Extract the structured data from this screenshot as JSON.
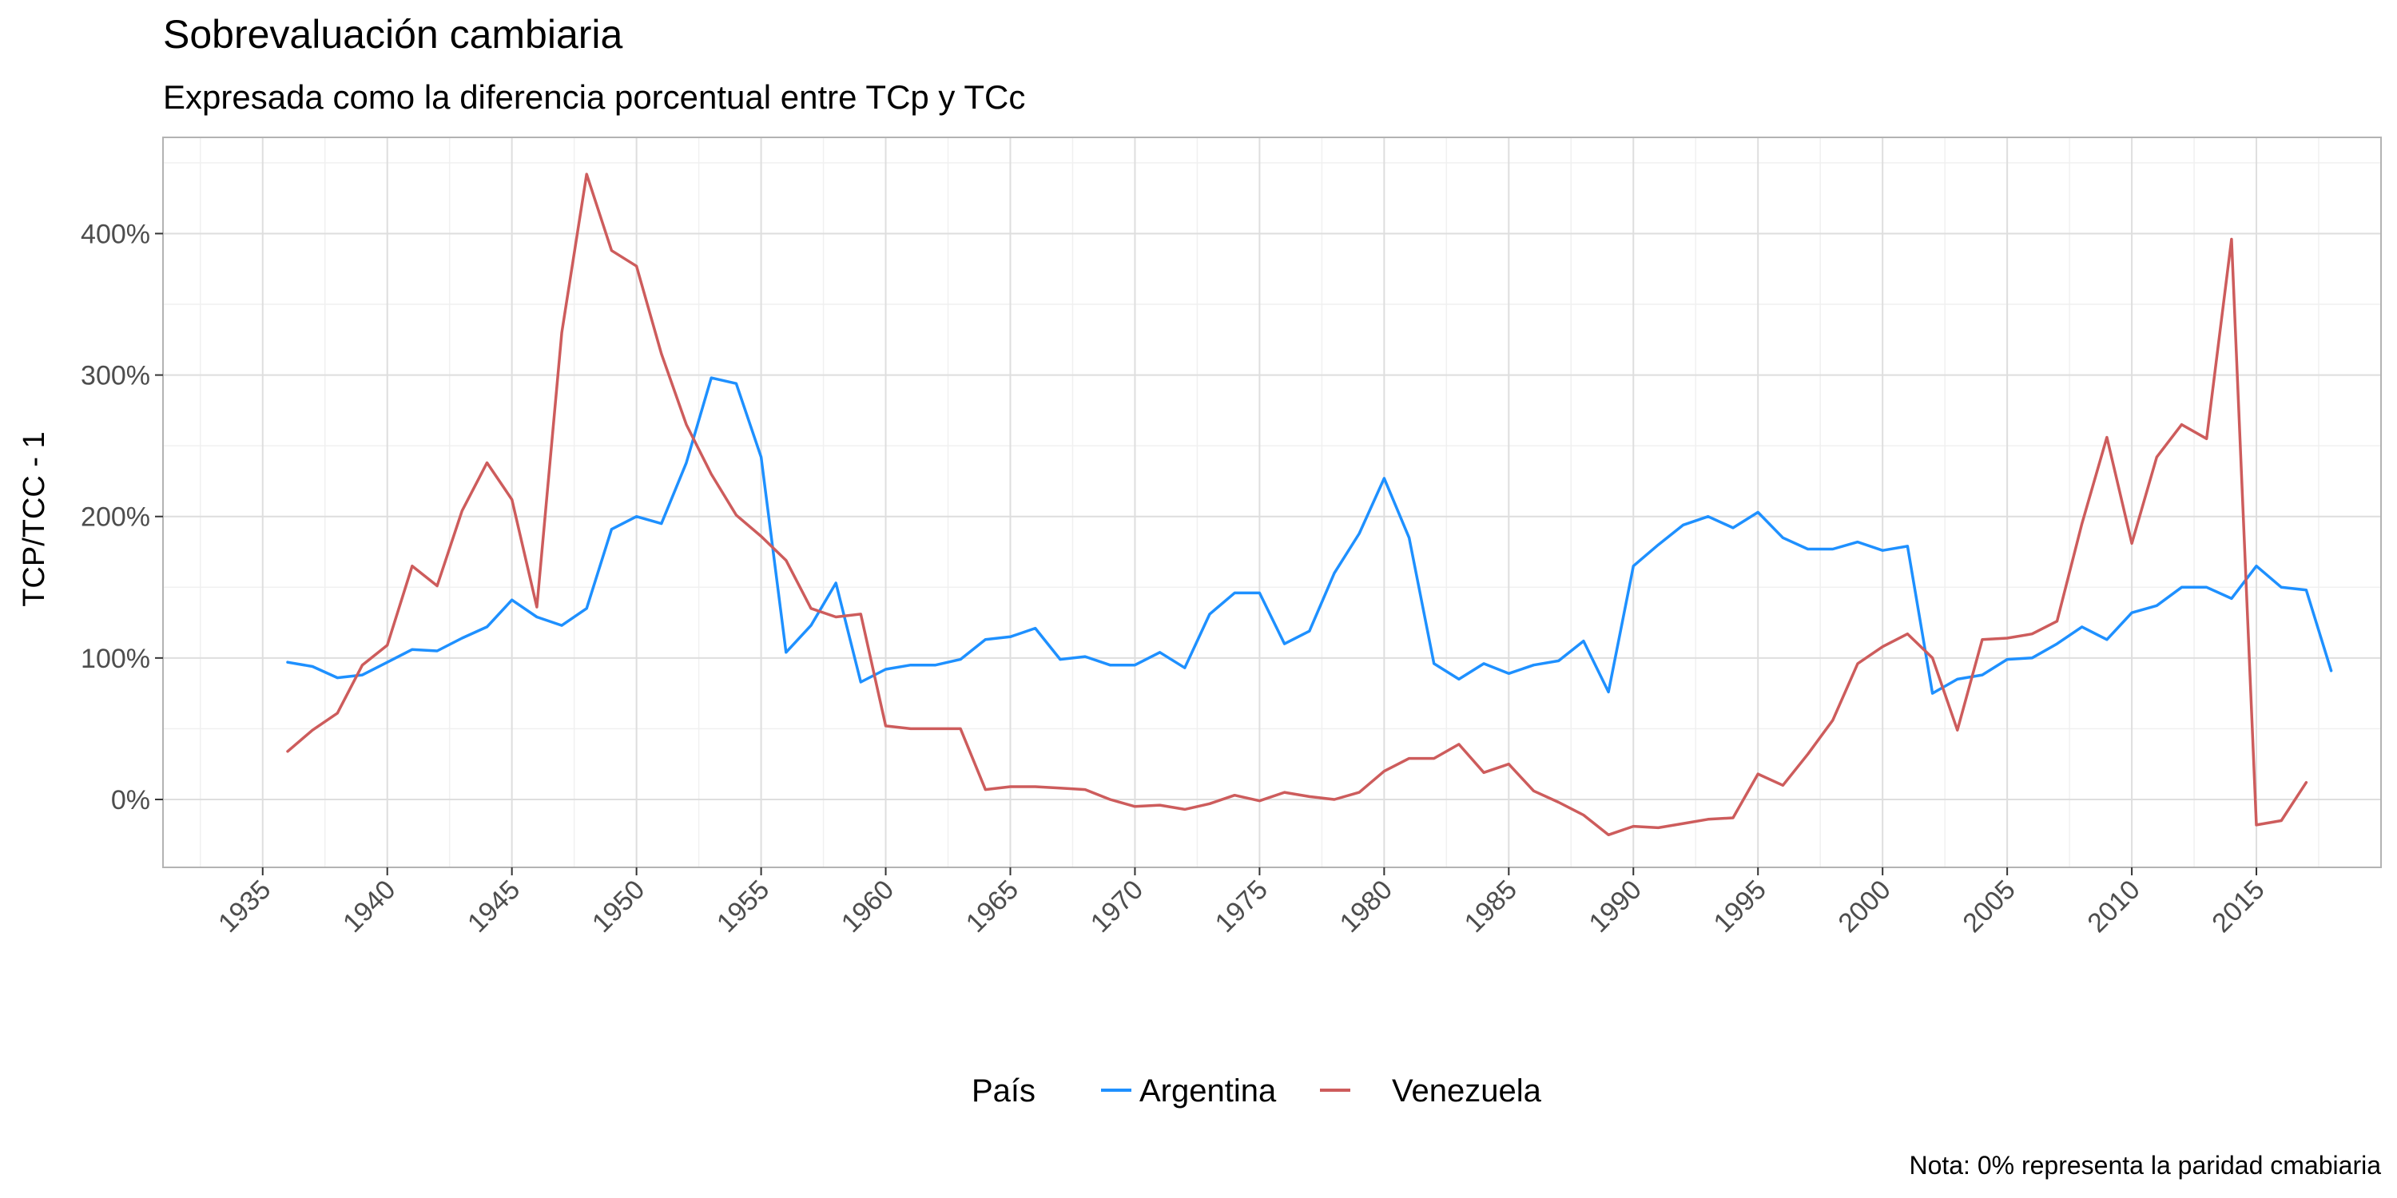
{
  "chart_data": {
    "type": "line",
    "title": "Sobrevaluación cambiaria",
    "subtitle": "Expresada como la diferencia porcentual entre TCp y TCc",
    "xlabel": "",
    "ylabel": "TCP/TCC - 1",
    "caption": "Nota: 0% representa la paridad cmabiaria",
    "xlim": [
      1931,
      2020
    ],
    "ylim": [
      -0.48,
      4.68
    ],
    "x_ticks": [
      1935,
      1940,
      1945,
      1950,
      1955,
      1960,
      1965,
      1970,
      1975,
      1980,
      1985,
      1990,
      1995,
      2000,
      2005,
      2010,
      2015
    ],
    "x_tick_labels": [
      "1935",
      "1940",
      "1945",
      "1950",
      "1955",
      "1960",
      "1965",
      "1970",
      "1975",
      "1980",
      "1985",
      "1990",
      "1995",
      "2000",
      "2005",
      "2010",
      "2015"
    ],
    "y_ticks": [
      0,
      1,
      2,
      3,
      4
    ],
    "y_tick_labels": [
      "0%",
      "100%",
      "200%",
      "300%",
      "400%"
    ],
    "grid": true,
    "legend": {
      "title": "País",
      "position": "bottom"
    },
    "series": [
      {
        "name": "Argentina",
        "color": "#1E90FF",
        "x": [
          1936,
          1937,
          1938,
          1939,
          1940,
          1941,
          1942,
          1943,
          1944,
          1945,
          1946,
          1947,
          1948,
          1949,
          1950,
          1951,
          1952,
          1953,
          1954,
          1955,
          1956,
          1957,
          1958,
          1959,
          1960,
          1961,
          1962,
          1963,
          1964,
          1965,
          1966,
          1967,
          1968,
          1969,
          1970,
          1971,
          1972,
          1973,
          1974,
          1975,
          1976,
          1977,
          1978,
          1979,
          1980,
          1981,
          1982,
          1983,
          1984,
          1985,
          1986,
          1987,
          1988,
          1989,
          1990,
          1991,
          1992,
          1993,
          1994,
          1995,
          1996,
          1997,
          1998,
          1999,
          2000,
          2001,
          2002,
          2003,
          2004,
          2005,
          2006,
          2007,
          2008,
          2009,
          2010,
          2011,
          2012,
          2013,
          2014,
          2015,
          2016,
          2017,
          2018
        ],
        "y": [
          0.97,
          0.94,
          0.86,
          0.88,
          0.97,
          1.06,
          1.05,
          1.14,
          1.22,
          1.41,
          1.29,
          1.23,
          1.35,
          1.91,
          2.0,
          1.95,
          2.38,
          2.98,
          2.94,
          2.42,
          1.04,
          1.23,
          1.53,
          0.83,
          0.92,
          0.95,
          0.95,
          0.99,
          1.13,
          1.15,
          1.21,
          0.99,
          1.01,
          0.95,
          0.95,
          1.04,
          0.93,
          1.31,
          1.46,
          1.46,
          1.1,
          1.19,
          1.6,
          1.88,
          2.27,
          1.85,
          0.96,
          0.85,
          0.96,
          0.89,
          0.95,
          0.98,
          1.12,
          0.76,
          1.65,
          1.8,
          1.94,
          2.0,
          1.92,
          2.03,
          1.85,
          1.77,
          1.77,
          1.82,
          1.76,
          1.79,
          0.75,
          0.85,
          0.88,
          0.99,
          1.0,
          1.1,
          1.22,
          1.13,
          1.32,
          1.37,
          1.5,
          1.5,
          1.42,
          1.65,
          1.5,
          1.48,
          0.91
        ]
      },
      {
        "name": "Venezuela",
        "color": "#CD5C5C",
        "x": [
          1936,
          1937,
          1938,
          1939,
          1940,
          1941,
          1942,
          1943,
          1944,
          1945,
          1946,
          1947,
          1948,
          1949,
          1950,
          1951,
          1952,
          1953,
          1954,
          1955,
          1956,
          1957,
          1958,
          1959,
          1960,
          1961,
          1962,
          1963,
          1964,
          1965,
          1966,
          1967,
          1968,
          1969,
          1970,
          1971,
          1972,
          1973,
          1974,
          1975,
          1976,
          1977,
          1978,
          1979,
          1980,
          1981,
          1982,
          1983,
          1984,
          1985,
          1986,
          1987,
          1988,
          1989,
          1990,
          1991,
          1992,
          1993,
          1994,
          1995,
          1996,
          1997,
          1998,
          1999,
          2000,
          2001,
          2002,
          2003,
          2004,
          2005,
          2006,
          2007,
          2008,
          2009,
          2010,
          2011,
          2012,
          2013,
          2014,
          2015,
          2016,
          2017
        ],
        "y": [
          0.34,
          0.49,
          0.61,
          0.95,
          1.09,
          1.65,
          1.51,
          2.04,
          2.38,
          2.12,
          1.36,
          3.3,
          4.42,
          3.88,
          3.77,
          3.15,
          2.65,
          2.3,
          2.01,
          1.86,
          1.69,
          1.35,
          1.29,
          1.31,
          0.52,
          0.5,
          0.5,
          0.5,
          0.07,
          0.09,
          0.09,
          0.08,
          0.07,
          0.0,
          -0.05,
          -0.04,
          -0.07,
          -0.03,
          0.03,
          -0.01,
          0.05,
          0.02,
          0.0,
          0.05,
          0.2,
          0.29,
          0.29,
          0.39,
          0.19,
          0.25,
          0.06,
          -0.02,
          -0.11,
          -0.25,
          -0.19,
          -0.2,
          -0.17,
          -0.14,
          -0.13,
          0.18,
          0.1,
          0.32,
          0.56,
          0.96,
          1.08,
          1.17,
          1.0,
          0.49,
          1.13,
          1.14,
          1.17,
          1.26,
          1.95,
          2.56,
          1.81,
          2.42,
          2.65,
          2.55,
          3.96,
          -0.18,
          -0.15,
          0.12
        ]
      }
    ]
  }
}
